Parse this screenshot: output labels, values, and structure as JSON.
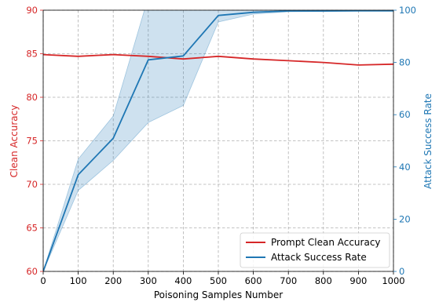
{
  "chart_data": {
    "type": "line",
    "xlabel": "Poisoning Samples Number",
    "ylabel_left": "Clean Accuracy",
    "ylabel_right": "Attack Success Rate",
    "x": [
      0,
      100,
      200,
      300,
      400,
      500,
      600,
      700,
      800,
      900,
      1000
    ],
    "xlim": [
      0,
      1000
    ],
    "xticks": [
      "0",
      "100",
      "200",
      "300",
      "400",
      "500",
      "600",
      "700",
      "800",
      "900",
      "1000"
    ],
    "ylim_left": [
      60,
      90
    ],
    "yticks_left": [
      "60",
      "65",
      "70",
      "75",
      "80",
      "85",
      "90"
    ],
    "ylim_right": [
      0,
      100
    ],
    "yticks_right": [
      "0",
      "20",
      "40",
      "60",
      "80",
      "100"
    ],
    "grid": "dashed",
    "legend_position": "lower-right",
    "series": [
      {
        "name": "Prompt Clean Accuracy",
        "axis": "left",
        "color": "#d62728",
        "values": [
          84.9,
          84.7,
          84.9,
          84.7,
          84.4,
          84.7,
          84.4,
          84.2,
          84.0,
          83.7,
          83.8
        ]
      },
      {
        "name": "Attack Success Rate",
        "axis": "right",
        "color": "#1f77b4",
        "values": [
          0,
          37,
          51,
          81,
          82.5,
          98,
          99.2,
          99.7,
          99.7,
          99.8,
          99.8
        ],
        "band_lower": [
          0,
          31,
          42.5,
          57,
          63.5,
          95.5,
          98.5,
          99.4,
          99.5,
          99.6,
          99.6
        ],
        "band_upper": [
          0,
          43,
          59.5,
          105,
          101,
          101,
          100.2,
          100.1,
          100.1,
          100.1,
          100.1
        ],
        "band_color": "#1f77b4"
      }
    ]
  }
}
